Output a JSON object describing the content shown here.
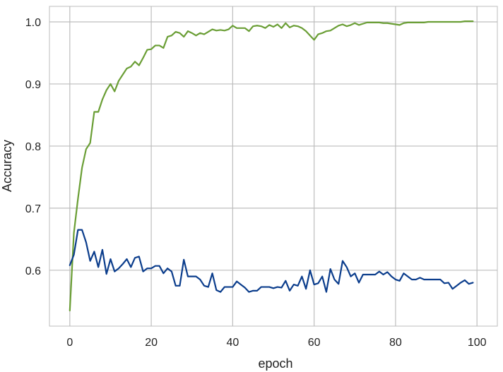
{
  "chart_data": {
    "type": "line",
    "xlabel": "epoch",
    "ylabel": "Accuracy",
    "xlim": [
      -5,
      105
    ],
    "ylim": [
      0.51,
      1.025
    ],
    "xticks": [
      0,
      20,
      40,
      60,
      80,
      100
    ],
    "yticks": [
      0.6,
      0.7,
      0.8,
      0.9,
      1.0
    ],
    "xtick_labels": [
      "0",
      "20",
      "40",
      "60",
      "80",
      "100"
    ],
    "ytick_labels": [
      "0.6",
      "0.7",
      "0.8",
      "0.9",
      "1.0"
    ],
    "grid": true,
    "series": [
      {
        "color": "#6a9e35",
        "x": [
          0,
          1,
          2,
          3,
          4,
          5,
          6,
          7,
          8,
          9,
          10,
          11,
          12,
          13,
          14,
          15,
          16,
          17,
          18,
          19,
          20,
          21,
          22,
          23,
          24,
          25,
          26,
          27,
          28,
          29,
          30,
          31,
          32,
          33,
          34,
          35,
          36,
          37,
          38,
          39,
          40,
          41,
          42,
          43,
          44,
          45,
          46,
          47,
          48,
          49,
          50,
          51,
          52,
          53,
          54,
          55,
          56,
          57,
          58,
          59,
          60,
          61,
          62,
          63,
          64,
          65,
          66,
          67,
          68,
          69,
          70,
          71,
          72,
          73,
          74,
          75,
          76,
          77,
          78,
          79,
          80,
          81,
          82,
          83,
          84,
          85,
          86,
          87,
          88,
          89,
          90,
          91,
          92,
          93,
          94,
          95,
          96,
          97,
          98,
          99
        ],
        "values": [
          0.535,
          0.66,
          0.715,
          0.765,
          0.795,
          0.805,
          0.855,
          0.855,
          0.875,
          0.89,
          0.9,
          0.888,
          0.905,
          0.915,
          0.925,
          0.928,
          0.936,
          0.93,
          0.942,
          0.955,
          0.956,
          0.962,
          0.962,
          0.958,
          0.976,
          0.978,
          0.984,
          0.982,
          0.976,
          0.985,
          0.982,
          0.978,
          0.982,
          0.98,
          0.984,
          0.988,
          0.986,
          0.987,
          0.986,
          0.988,
          0.994,
          0.99,
          0.99,
          0.99,
          0.985,
          0.993,
          0.994,
          0.993,
          0.99,
          0.995,
          0.992,
          0.996,
          0.99,
          0.998,
          0.991,
          0.994,
          0.993,
          0.99,
          0.985,
          0.978,
          0.971,
          0.98,
          0.982,
          0.985,
          0.986,
          0.99,
          0.994,
          0.996,
          0.993,
          0.995,
          0.998,
          0.995,
          0.997,
          0.999,
          0.999,
          0.999,
          0.999,
          0.998,
          0.998,
          0.997,
          0.996,
          0.995,
          0.998,
          0.999,
          0.999,
          0.999,
          0.999,
          0.999,
          1.0,
          1.0,
          1.0,
          1.0,
          1.0,
          1.0,
          1.0,
          1.0,
          1.0,
          1.001,
          1.001,
          1.001
        ]
      },
      {
        "color": "#0b3d8c",
        "x": [
          0,
          1,
          2,
          3,
          4,
          5,
          6,
          7,
          8,
          9,
          10,
          11,
          12,
          13,
          14,
          15,
          16,
          17,
          18,
          19,
          20,
          21,
          22,
          23,
          24,
          25,
          26,
          27,
          28,
          29,
          30,
          31,
          32,
          33,
          34,
          35,
          36,
          37,
          38,
          39,
          40,
          41,
          42,
          43,
          44,
          45,
          46,
          47,
          48,
          49,
          50,
          51,
          52,
          53,
          54,
          55,
          56,
          57,
          58,
          59,
          60,
          61,
          62,
          63,
          64,
          65,
          66,
          67,
          68,
          69,
          70,
          71,
          72,
          73,
          74,
          75,
          76,
          77,
          78,
          79,
          80,
          81,
          82,
          83,
          84,
          85,
          86,
          87,
          88,
          89,
          90,
          91,
          92,
          93,
          94,
          95,
          96,
          97,
          98,
          99
        ],
        "values": [
          0.608,
          0.625,
          0.665,
          0.665,
          0.645,
          0.615,
          0.63,
          0.605,
          0.633,
          0.594,
          0.618,
          0.598,
          0.603,
          0.61,
          0.618,
          0.605,
          0.62,
          0.622,
          0.598,
          0.603,
          0.603,
          0.607,
          0.607,
          0.595,
          0.603,
          0.598,
          0.575,
          0.575,
          0.617,
          0.59,
          0.59,
          0.59,
          0.585,
          0.575,
          0.573,
          0.595,
          0.568,
          0.565,
          0.573,
          0.573,
          0.573,
          0.582,
          0.577,
          0.572,
          0.565,
          0.567,
          0.567,
          0.573,
          0.573,
          0.573,
          0.571,
          0.573,
          0.572,
          0.583,
          0.567,
          0.577,
          0.575,
          0.59,
          0.57,
          0.6,
          0.577,
          0.579,
          0.59,
          0.565,
          0.602,
          0.585,
          0.578,
          0.615,
          0.605,
          0.59,
          0.595,
          0.58,
          0.593,
          0.593,
          0.593,
          0.593,
          0.598,
          0.593,
          0.597,
          0.59,
          0.585,
          0.583,
          0.595,
          0.59,
          0.585,
          0.585,
          0.588,
          0.585,
          0.585,
          0.585,
          0.585,
          0.585,
          0.579,
          0.58,
          0.57,
          0.575,
          0.58,
          0.584,
          0.578,
          0.58
        ]
      }
    ]
  }
}
